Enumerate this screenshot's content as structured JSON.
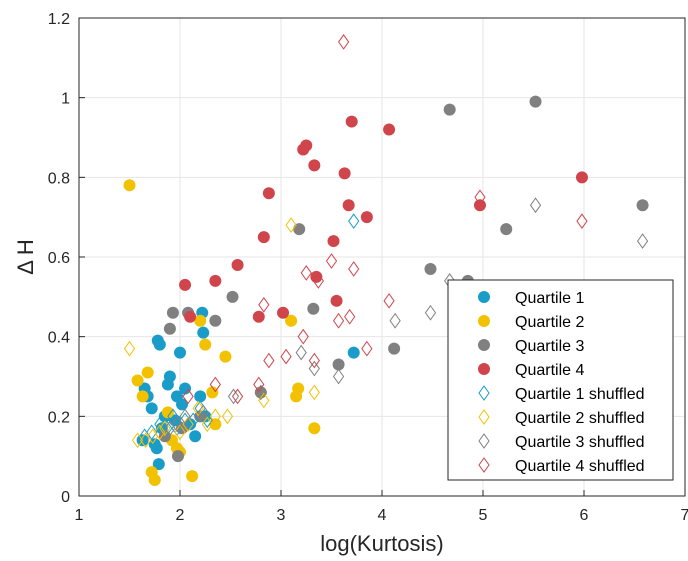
{
  "chart_data": {
    "type": "scatter",
    "xlabel": "log(Kurtosis)",
    "ylabel": "Δ H",
    "xlim": [
      1,
      7
    ],
    "ylim": [
      0,
      1.2
    ],
    "xticks": [
      "1",
      "2",
      "3",
      "4",
      "5",
      "6",
      "7"
    ],
    "yticks": [
      "0",
      "0.2",
      "0.4",
      "0.6",
      "0.8",
      "1",
      "1.2"
    ],
    "grid": true,
    "legend_position": "bottom-right",
    "series": [
      {
        "name": "Quartile 1",
        "marker": "filled-circle",
        "color": "#1a9cc9",
        "points": [
          [
            1.63,
            0.14
          ],
          [
            1.65,
            0.27
          ],
          [
            1.68,
            0.25
          ],
          [
            1.72,
            0.22
          ],
          [
            1.75,
            0.13
          ],
          [
            1.77,
            0.12
          ],
          [
            1.78,
            0.39
          ],
          [
            1.79,
            0.08
          ],
          [
            1.8,
            0.38
          ],
          [
            1.82,
            0.17
          ],
          [
            1.85,
            0.2
          ],
          [
            1.88,
            0.28
          ],
          [
            1.9,
            0.3
          ],
          [
            1.95,
            0.19
          ],
          [
            1.97,
            0.25
          ],
          [
            2.0,
            0.36
          ],
          [
            2.02,
            0.23
          ],
          [
            2.05,
            0.27
          ],
          [
            2.1,
            0.18
          ],
          [
            2.15,
            0.15
          ],
          [
            2.2,
            0.25
          ],
          [
            2.22,
            0.46
          ],
          [
            2.23,
            0.41
          ],
          [
            2.25,
            0.2
          ],
          [
            3.72,
            0.36
          ]
        ]
      },
      {
        "name": "Quartile 2",
        "marker": "filled-circle",
        "color": "#f2c200",
        "points": [
          [
            1.5,
            0.78
          ],
          [
            1.58,
            0.29
          ],
          [
            1.63,
            0.25
          ],
          [
            1.68,
            0.31
          ],
          [
            1.72,
            0.06
          ],
          [
            1.75,
            0.04
          ],
          [
            1.88,
            0.21
          ],
          [
            1.92,
            0.14
          ],
          [
            1.97,
            0.12
          ],
          [
            2.0,
            0.11
          ],
          [
            2.12,
            0.05
          ],
          [
            2.2,
            0.44
          ],
          [
            2.25,
            0.38
          ],
          [
            2.32,
            0.26
          ],
          [
            2.35,
            0.18
          ],
          [
            2.45,
            0.35
          ],
          [
            2.8,
            0.26
          ],
          [
            3.1,
            0.44
          ],
          [
            3.15,
            0.25
          ],
          [
            3.17,
            0.27
          ],
          [
            3.33,
            0.17
          ]
        ]
      },
      {
        "name": "Quartile 3",
        "marker": "filled-circle",
        "color": "#808080",
        "points": [
          [
            1.85,
            0.15
          ],
          [
            1.9,
            0.42
          ],
          [
            1.93,
            0.46
          ],
          [
            1.98,
            0.1
          ],
          [
            2.02,
            0.17
          ],
          [
            2.08,
            0.46
          ],
          [
            2.2,
            0.2
          ],
          [
            2.35,
            0.44
          ],
          [
            2.52,
            0.5
          ],
          [
            2.8,
            0.26
          ],
          [
            3.18,
            0.67
          ],
          [
            3.32,
            0.47
          ],
          [
            3.57,
            0.33
          ],
          [
            4.12,
            0.37
          ],
          [
            4.48,
            0.57
          ],
          [
            4.67,
            0.97
          ],
          [
            4.85,
            0.54
          ],
          [
            5.23,
            0.67
          ],
          [
            5.52,
            0.99
          ],
          [
            6.58,
            0.73
          ]
        ]
      },
      {
        "name": "Quartile 4",
        "marker": "filled-circle",
        "color": "#d0454c",
        "points": [
          [
            2.05,
            0.53
          ],
          [
            2.1,
            0.45
          ],
          [
            2.35,
            0.54
          ],
          [
            2.57,
            0.58
          ],
          [
            2.78,
            0.45
          ],
          [
            2.83,
            0.65
          ],
          [
            2.88,
            0.76
          ],
          [
            3.02,
            0.46
          ],
          [
            3.22,
            0.87
          ],
          [
            3.25,
            0.88
          ],
          [
            3.33,
            0.83
          ],
          [
            3.35,
            0.55
          ],
          [
            3.52,
            0.64
          ],
          [
            3.55,
            0.49
          ],
          [
            3.63,
            0.81
          ],
          [
            3.67,
            0.73
          ],
          [
            3.7,
            0.94
          ],
          [
            3.85,
            0.7
          ],
          [
            4.07,
            0.92
          ],
          [
            4.97,
            0.73
          ],
          [
            5.98,
            0.8
          ]
        ]
      },
      {
        "name": "Quartile 1 shuffled",
        "marker": "open-diamond",
        "color": "#1a9cc9",
        "points": [
          [
            1.65,
            0.15
          ],
          [
            1.72,
            0.16
          ],
          [
            1.8,
            0.18
          ],
          [
            1.87,
            0.17
          ],
          [
            1.93,
            0.2
          ],
          [
            1.97,
            0.17
          ],
          [
            2.05,
            0.19
          ],
          [
            2.13,
            0.19
          ],
          [
            2.2,
            0.22
          ],
          [
            2.27,
            0.19
          ],
          [
            3.72,
            0.69
          ]
        ]
      },
      {
        "name": "Quartile 2 shuffled",
        "marker": "open-diamond",
        "color": "#f2c200",
        "points": [
          [
            1.5,
            0.37
          ],
          [
            1.58,
            0.14
          ],
          [
            1.66,
            0.14
          ],
          [
            1.73,
            0.15
          ],
          [
            1.8,
            0.16
          ],
          [
            1.85,
            0.17
          ],
          [
            2.0,
            0.16
          ],
          [
            2.08,
            0.18
          ],
          [
            2.18,
            0.22
          ],
          [
            2.27,
            0.18
          ],
          [
            2.35,
            0.2
          ],
          [
            2.47,
            0.2
          ],
          [
            2.83,
            0.24
          ],
          [
            3.1,
            0.68
          ],
          [
            3.33,
            0.26
          ]
        ]
      },
      {
        "name": "Quartile 3 shuffled",
        "marker": "open-diamond",
        "color": "#808080",
        "points": [
          [
            1.9,
            0.17
          ],
          [
            1.97,
            0.18
          ],
          [
            2.05,
            0.2
          ],
          [
            2.23,
            0.21
          ],
          [
            2.53,
            0.25
          ],
          [
            2.8,
            0.26
          ],
          [
            3.2,
            0.36
          ],
          [
            3.33,
            0.32
          ],
          [
            3.57,
            0.3
          ],
          [
            4.13,
            0.44
          ],
          [
            4.48,
            0.46
          ],
          [
            4.67,
            0.54
          ],
          [
            5.52,
            0.73
          ],
          [
            6.58,
            0.64
          ]
        ]
      },
      {
        "name": "Quartile 4 shuffled",
        "marker": "open-diamond",
        "color": "#d0454c",
        "points": [
          [
            2.08,
            0.25
          ],
          [
            2.35,
            0.28
          ],
          [
            2.57,
            0.25
          ],
          [
            2.78,
            0.28
          ],
          [
            2.83,
            0.48
          ],
          [
            2.88,
            0.34
          ],
          [
            3.05,
            0.35
          ],
          [
            3.22,
            0.4
          ],
          [
            3.25,
            0.56
          ],
          [
            3.33,
            0.34
          ],
          [
            3.37,
            0.54
          ],
          [
            3.5,
            0.59
          ],
          [
            3.57,
            0.44
          ],
          [
            3.62,
            1.14
          ],
          [
            3.68,
            0.45
          ],
          [
            3.72,
            0.57
          ],
          [
            3.85,
            0.37
          ],
          [
            4.07,
            0.49
          ],
          [
            4.97,
            0.75
          ],
          [
            5.98,
            0.69
          ]
        ]
      }
    ]
  }
}
